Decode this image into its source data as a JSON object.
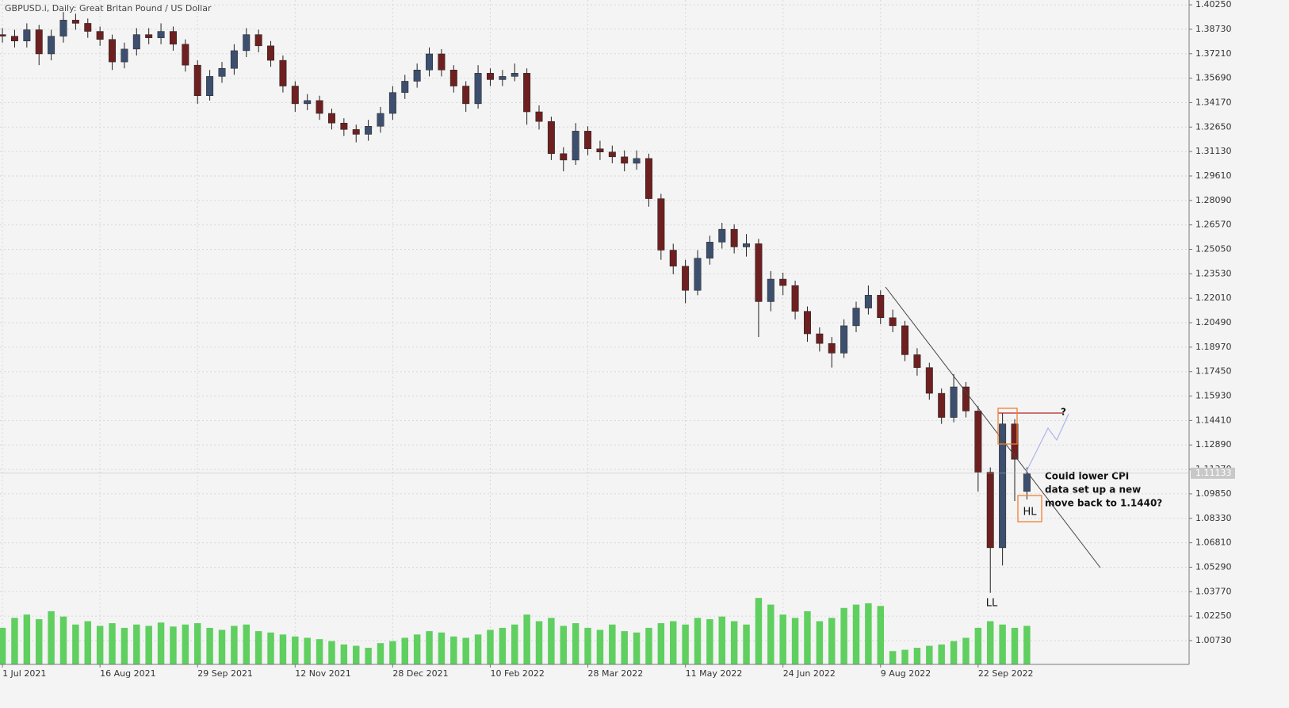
{
  "chart_data": {
    "type": "candlestick",
    "title": "GBPUSD.i, Daily:  Great Britan Pound / US Dollar",
    "open": [
      1.384,
      1.383,
      1.38,
      1.387,
      1.372,
      1.383,
      1.393,
      1.391,
      1.386,
      1.381,
      1.367,
      1.375,
      1.384,
      1.382,
      1.386,
      1.378,
      1.365,
      1.346,
      1.358,
      1.363,
      1.374,
      1.384,
      1.377,
      1.368,
      1.352,
      1.341,
      1.343,
      1.335,
      1.329,
      1.325,
      1.322,
      1.327,
      1.335,
      1.348,
      1.355,
      1.362,
      1.372,
      1.362,
      1.352,
      1.341,
      1.36,
      1.356,
      1.358,
      1.36,
      1.336,
      1.33,
      1.31,
      1.306,
      1.324,
      1.313,
      1.311,
      1.308,
      1.304,
      1.307,
      1.282,
      1.25,
      1.24,
      1.225,
      1.245,
      1.255,
      1.263,
      1.252,
      1.254,
      1.218,
      1.232,
      1.228,
      1.212,
      1.198,
      1.192,
      1.186,
      1.203,
      1.214,
      1.222,
      1.208,
      1.203,
      1.185,
      1.177,
      1.161,
      1.146,
      1.165,
      1.15,
      1.112,
      1.065,
      1.142,
      1.1
    ],
    "high": [
      1.388,
      1.387,
      1.391,
      1.39,
      1.387,
      1.398,
      1.397,
      1.394,
      1.389,
      1.384,
      1.379,
      1.388,
      1.388,
      1.391,
      1.389,
      1.381,
      1.368,
      1.362,
      1.367,
      1.378,
      1.388,
      1.387,
      1.38,
      1.371,
      1.355,
      1.347,
      1.346,
      1.338,
      1.332,
      1.328,
      1.331,
      1.339,
      1.352,
      1.359,
      1.366,
      1.376,
      1.375,
      1.365,
      1.355,
      1.365,
      1.363,
      1.362,
      1.366,
      1.363,
      1.34,
      1.333,
      1.314,
      1.329,
      1.327,
      1.318,
      1.315,
      1.312,
      1.312,
      1.31,
      1.285,
      1.254,
      1.244,
      1.25,
      1.259,
      1.267,
      1.266,
      1.26,
      1.257,
      1.237,
      1.236,
      1.231,
      1.215,
      1.202,
      1.196,
      1.207,
      1.218,
      1.228,
      1.225,
      1.213,
      1.206,
      1.189,
      1.18,
      1.164,
      1.173,
      1.168,
      1.153,
      1.115,
      1.149,
      1.145,
      1.115
    ],
    "low": [
      1.379,
      1.376,
      1.376,
      1.365,
      1.368,
      1.379,
      1.387,
      1.382,
      1.377,
      1.362,
      1.363,
      1.371,
      1.378,
      1.378,
      1.374,
      1.361,
      1.341,
      1.343,
      1.354,
      1.359,
      1.37,
      1.373,
      1.364,
      1.348,
      1.336,
      1.337,
      1.331,
      1.325,
      1.321,
      1.317,
      1.318,
      1.323,
      1.331,
      1.344,
      1.351,
      1.358,
      1.358,
      1.348,
      1.336,
      1.338,
      1.352,
      1.352,
      1.355,
      1.328,
      1.325,
      1.306,
      1.299,
      1.303,
      1.309,
      1.306,
      1.304,
      1.299,
      1.3,
      1.277,
      1.244,
      1.235,
      1.217,
      1.222,
      1.241,
      1.251,
      1.248,
      1.246,
      1.196,
      1.212,
      1.222,
      1.207,
      1.193,
      1.187,
      1.177,
      1.183,
      1.199,
      1.21,
      1.204,
      1.199,
      1.181,
      1.172,
      1.157,
      1.142,
      1.143,
      1.146,
      1.1,
      1.037,
      1.054,
      1.094,
      1.095
    ],
    "close": [
      1.383,
      1.38,
      1.387,
      1.372,
      1.383,
      1.393,
      1.391,
      1.386,
      1.381,
      1.367,
      1.375,
      1.384,
      1.382,
      1.386,
      1.378,
      1.365,
      1.346,
      1.358,
      1.363,
      1.374,
      1.384,
      1.377,
      1.368,
      1.352,
      1.341,
      1.343,
      1.335,
      1.329,
      1.325,
      1.322,
      1.327,
      1.335,
      1.348,
      1.355,
      1.362,
      1.372,
      1.362,
      1.352,
      1.341,
      1.36,
      1.356,
      1.358,
      1.36,
      1.336,
      1.33,
      1.31,
      1.306,
      1.324,
      1.313,
      1.311,
      1.308,
      1.304,
      1.307,
      1.282,
      1.25,
      1.24,
      1.225,
      1.245,
      1.255,
      1.263,
      1.252,
      1.254,
      1.218,
      1.232,
      1.228,
      1.212,
      1.198,
      1.192,
      1.186,
      1.203,
      1.214,
      1.222,
      1.208,
      1.203,
      1.185,
      1.177,
      1.161,
      1.146,
      1.165,
      1.15,
      1.112,
      1.065,
      1.142,
      1.12,
      1.111
    ],
    "volume": [
      55,
      70,
      75,
      68,
      80,
      72,
      60,
      65,
      58,
      62,
      55,
      60,
      58,
      63,
      57,
      60,
      62,
      55,
      52,
      58,
      60,
      50,
      48,
      45,
      42,
      40,
      38,
      35,
      30,
      28,
      25,
      32,
      35,
      40,
      45,
      50,
      48,
      42,
      40,
      45,
      52,
      55,
      60,
      75,
      65,
      70,
      58,
      62,
      55,
      52,
      60,
      50,
      48,
      55,
      62,
      65,
      60,
      70,
      68,
      72,
      65,
      60,
      100,
      90,
      75,
      70,
      80,
      65,
      70,
      85,
      90,
      92,
      88,
      20,
      22,
      25,
      28,
      30,
      35,
      40,
      55,
      65,
      60,
      55,
      58
    ],
    "vlim": [
      0,
      1000
    ],
    "xlim": [
      -0.2,
      97.3
    ],
    "xticks": [
      {
        "value": 0,
        "label": "1 Jul 2021"
      },
      {
        "value": 8,
        "label": "16 Aug 2021"
      },
      {
        "value": 16,
        "label": "29 Sep 2021"
      },
      {
        "value": 24,
        "label": "12 Nov 2021"
      },
      {
        "value": 32,
        "label": "28 Dec 2021"
      },
      {
        "value": 40,
        "label": "10 Feb 2022"
      },
      {
        "value": 48,
        "label": "28 Mar 2022"
      },
      {
        "value": 56,
        "label": "11 May 2022"
      },
      {
        "value": 64,
        "label": "24 Jun 2022"
      },
      {
        "value": 72,
        "label": "9 Aug 2022"
      },
      {
        "value": 80,
        "label": "22 Sep 2022"
      }
    ],
    "ylim": [
      0.9925,
      1.4055
    ],
    "yticks": [
      {
        "value": 1.4025,
        "label": "1.40250"
      },
      {
        "value": 1.3873,
        "label": "1.38730"
      },
      {
        "value": 1.3721,
        "label": "1.37210"
      },
      {
        "value": 1.3569,
        "label": "1.35690"
      },
      {
        "value": 1.3417,
        "label": "1.34170"
      },
      {
        "value": 1.3265,
        "label": "1.32650"
      },
      {
        "value": 1.3113,
        "label": "1.31130"
      },
      {
        "value": 1.2961,
        "label": "1.29610"
      },
      {
        "value": 1.2809,
        "label": "1.28090"
      },
      {
        "value": 1.2657,
        "label": "1.26570"
      },
      {
        "value": 1.2505,
        "label": "1.25050"
      },
      {
        "value": 1.2353,
        "label": "1.23530"
      },
      {
        "value": 1.2201,
        "label": "1.22010"
      },
      {
        "value": 1.2049,
        "label": "1.20490"
      },
      {
        "value": 1.1897,
        "label": "1.18970"
      },
      {
        "value": 1.1745,
        "label": "1.17450"
      },
      {
        "value": 1.1593,
        "label": "1.15930"
      },
      {
        "value": 1.1441,
        "label": "1.14410"
      },
      {
        "value": 1.1289,
        "label": "1.12890"
      },
      {
        "value": 1.1137,
        "label": "1.11370"
      },
      {
        "value": 1.0985,
        "label": "1.09850"
      },
      {
        "value": 1.0833,
        "label": "1.08330"
      },
      {
        "value": 1.0681,
        "label": "1.06810"
      },
      {
        "value": 1.0529,
        "label": "1.05290"
      },
      {
        "value": 1.0377,
        "label": "1.03770"
      },
      {
        "value": 1.0225,
        "label": "1.02250"
      },
      {
        "value": 1.0073,
        "label": "1.00730"
      }
    ],
    "last_price": {
      "value": 1.11133,
      "label": "1.11133"
    },
    "grid": true,
    "up_color": "#3d4f6e",
    "down_color": "#6e2020",
    "wick_color": "#222222",
    "volume_color": "#5fcf5f",
    "annotations": {
      "question": "?",
      "note": [
        "Could lower CPI",
        "data set up a new",
        "move back to 1.1440?"
      ],
      "hl": "HL",
      "ll": "LL"
    }
  }
}
